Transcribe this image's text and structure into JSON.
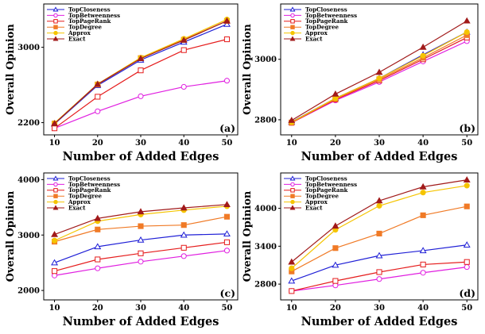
{
  "legend_series": [
    "TopCloseness",
    "TopBetweenness",
    "TopPageRank",
    "TopDegree",
    "Approx",
    "Exact"
  ],
  "series_styles": {
    "TopCloseness": {
      "color": "#1f1fd6",
      "marker": "triangle-open"
    },
    "TopBetweenness": {
      "color": "#e01ee0",
      "marker": "circle-open"
    },
    "TopPageRank": {
      "color": "#e51c1c",
      "marker": "square-open"
    },
    "TopDegree": {
      "color": "#f07a26",
      "marker": "square-filled"
    },
    "Approx": {
      "color": "#f5c400",
      "marker": "circle-filled"
    },
    "Exact": {
      "color": "#a11a1a",
      "marker": "triangle-filled"
    }
  },
  "chart_data": [
    {
      "type": "line",
      "panel_label": "(a)",
      "xlabel": "Number of Added Edges",
      "ylabel": "Overall Opinion",
      "x": [
        10,
        20,
        30,
        40,
        50
      ],
      "xticks": [
        10,
        20,
        30,
        40,
        50
      ],
      "xlim": [
        7.5,
        52.5
      ],
      "yticks": [
        2200,
        3000
      ],
      "ylim": [
        2070,
        3460
      ],
      "grid": false,
      "legend_position": "top-left",
      "series": [
        {
          "name": "TopCloseness",
          "values": [
            2185,
            2595,
            2865,
            3055,
            3245
          ]
        },
        {
          "name": "TopBetweenness",
          "values": [
            2140,
            2320,
            2480,
            2580,
            2645
          ]
        },
        {
          "name": "TopPageRank",
          "values": [
            2140,
            2475,
            2755,
            2970,
            3085
          ]
        },
        {
          "name": "TopDegree",
          "values": [
            2190,
            2605,
            2885,
            3080,
            3280
          ]
        },
        {
          "name": "Approx",
          "values": [
            2195,
            2610,
            2890,
            3090,
            3295
          ]
        },
        {
          "name": "Exact",
          "values": [
            2190,
            2608,
            2880,
            3075,
            3280
          ]
        }
      ]
    },
    {
      "type": "line",
      "panel_label": "(b)",
      "xlabel": "Number of Added Edges",
      "ylabel": "Overall Opinion",
      "x": [
        10,
        20,
        30,
        40,
        50
      ],
      "xticks": [
        10,
        20,
        30,
        40,
        50
      ],
      "xticks_note": "",
      "xlim": [
        7.5,
        52.5
      ],
      "yticks": [
        2800,
        3000
      ],
      "ylim": [
        2750,
        3183
      ],
      "grid": false,
      "legend_position": "top-left",
      "series": [
        {
          "name": "TopCloseness",
          "values": [
            2793,
            2871,
            2937,
            3015,
            3090
          ]
        },
        {
          "name": "TopBetweenness",
          "values": [
            2790,
            2864,
            2925,
            2993,
            3060
          ]
        },
        {
          "name": "TopPageRank",
          "values": [
            2790,
            2867,
            2930,
            3000,
            3072
          ]
        },
        {
          "name": "TopDegree",
          "values": [
            2791,
            2869,
            2934,
            3005,
            3080
          ]
        },
        {
          "name": "Approx",
          "values": [
            2792,
            2871,
            2937,
            3012,
            3090
          ]
        },
        {
          "name": "Exact",
          "values": [
            2798,
            2885,
            2957,
            3040,
            3127
          ]
        }
      ]
    },
    {
      "type": "line",
      "panel_label": "(c)",
      "xlabel": "Number of Added Edges",
      "ylabel": "Overall Opinion",
      "x": [
        10,
        20,
        30,
        40,
        50
      ],
      "xticks": [
        10,
        20,
        30,
        40,
        50
      ],
      "xlim": [
        7.5,
        52.5
      ],
      "yticks": [
        2000,
        3000,
        4000
      ],
      "ylim": [
        1830,
        4120
      ],
      "grid": false,
      "legend_position": "top-left",
      "series": [
        {
          "name": "TopCloseness",
          "values": [
            2500,
            2790,
            2910,
            3000,
            3020
          ]
        },
        {
          "name": "TopBetweenness",
          "values": [
            2270,
            2400,
            2520,
            2620,
            2720
          ]
        },
        {
          "name": "TopPageRank",
          "values": [
            2350,
            2560,
            2670,
            2770,
            2870
          ]
        },
        {
          "name": "TopDegree",
          "values": [
            2880,
            3100,
            3160,
            3180,
            3330
          ]
        },
        {
          "name": "Approx",
          "values": [
            2900,
            3250,
            3370,
            3450,
            3520
          ]
        },
        {
          "name": "Exact",
          "values": [
            3010,
            3300,
            3420,
            3490,
            3550
          ]
        }
      ]
    },
    {
      "type": "line",
      "panel_label": "(d)",
      "xlabel": "Number of Added Edges",
      "ylabel": "Overall Opinion",
      "x": [
        10,
        20,
        30,
        40,
        50
      ],
      "xticks": [
        10,
        20,
        30,
        40,
        50
      ],
      "xlim": [
        7.5,
        52.5
      ],
      "yticks": [
        2800,
        3400,
        4000
      ],
      "ylim": [
        2550,
        4560
      ],
      "grid": false,
      "legend_position": "top-left",
      "series": [
        {
          "name": "TopCloseness",
          "values": [
            2850,
            3100,
            3250,
            3330,
            3420
          ]
        },
        {
          "name": "TopBetweenness",
          "values": [
            2690,
            2780,
            2880,
            2980,
            3070
          ]
        },
        {
          "name": "TopPageRank",
          "values": [
            2690,
            2850,
            2990,
            3110,
            3150
          ]
        },
        {
          "name": "TopDegree",
          "values": [
            3000,
            3370,
            3600,
            3890,
            4030
          ]
        },
        {
          "name": "Approx",
          "values": [
            3050,
            3660,
            4040,
            4250,
            4360
          ]
        },
        {
          "name": "Exact",
          "values": [
            3150,
            3720,
            4120,
            4340,
            4450
          ]
        }
      ]
    }
  ]
}
